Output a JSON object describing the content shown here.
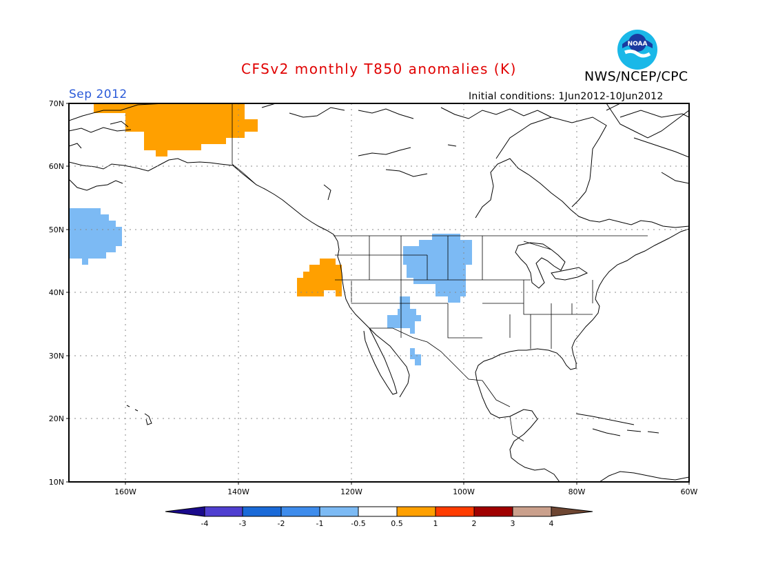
{
  "title": "CFSv2 monthly T850 anomalies (K)",
  "agency": "NWS/NCEP/CPC",
  "logo_text": "NOAA",
  "month": "Sep 2012",
  "initial_conditions": "Initial conditions: 1Jun2012-10Jun2012",
  "lat_labels": [
    "70N",
    "60N",
    "50N",
    "40N",
    "30N",
    "20N",
    "10N"
  ],
  "lon_labels": [
    "160W",
    "140W",
    "120W",
    "100W",
    "80W",
    "60W"
  ],
  "colorbar": {
    "tick_labels": [
      "-4",
      "-3",
      "-2",
      "-1",
      "-0.5",
      "0.5",
      "1",
      "2",
      "3",
      "4"
    ],
    "colors": [
      "#1a0a8c",
      "#4f3fd0",
      "#1a6ad8",
      "#3e8cec",
      "#7cbaf4",
      "#ffffff",
      "#ffa000",
      "#ff3c00",
      "#a00000",
      "#caa08c",
      "#6e4632"
    ]
  },
  "anomaly_regions": [
    {
      "name": "northeast-pacific-cold",
      "sign": "negative",
      "color": "#7cbaf4"
    },
    {
      "name": "alaska-warm",
      "sign": "positive",
      "color": "#ffa000"
    },
    {
      "name": "oregon-coast-warm",
      "sign": "positive",
      "color": "#ffa000"
    },
    {
      "name": "northern-plains-cold",
      "sign": "negative",
      "color": "#7cbaf4"
    },
    {
      "name": "southwest-cold",
      "sign": "negative",
      "color": "#7cbaf4"
    }
  ]
}
